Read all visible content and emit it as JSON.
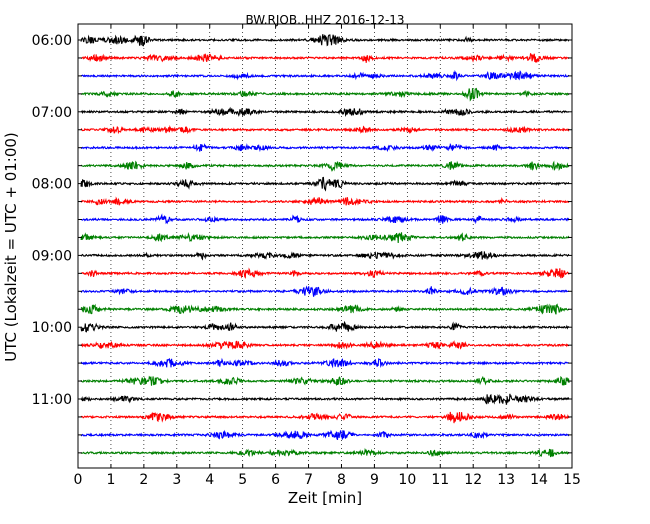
{
  "chart_data": {
    "type": "line",
    "subtype": "dayplot",
    "title": "BW.RJOB..HHZ 2016-12-13",
    "xlabel": "Zeit  [min]",
    "ylabel": "UTC (Lokalzeit = UTC + 01:00)",
    "xlim": [
      0,
      15
    ],
    "x_ticks": [
      "0",
      "1",
      "2",
      "3",
      "4",
      "5",
      "6",
      "7",
      "8",
      "9",
      "10",
      "11",
      "12",
      "13",
      "14",
      "15"
    ],
    "y_tick_labels": [
      "06:00",
      "07:00",
      "08:00",
      "09:00",
      "10:00",
      "11:00"
    ],
    "grid": "vertical dotted at each minute",
    "legend": "none",
    "colors": [
      "#000000",
      "#ff0000",
      "#0000ff",
      "#008000"
    ],
    "traces": [
      {
        "start": "06:00",
        "color": "#000000"
      },
      {
        "start": "06:15",
        "color": "#ff0000"
      },
      {
        "start": "06:30",
        "color": "#0000ff"
      },
      {
        "start": "06:45",
        "color": "#008000"
      },
      {
        "start": "07:00",
        "color": "#000000"
      },
      {
        "start": "07:15",
        "color": "#ff0000"
      },
      {
        "start": "07:30",
        "color": "#0000ff"
      },
      {
        "start": "07:45",
        "color": "#008000"
      },
      {
        "start": "08:00",
        "color": "#000000"
      },
      {
        "start": "08:15",
        "color": "#ff0000"
      },
      {
        "start": "08:30",
        "color": "#0000ff"
      },
      {
        "start": "08:45",
        "color": "#008000"
      },
      {
        "start": "09:00",
        "color": "#000000"
      },
      {
        "start": "09:15",
        "color": "#ff0000"
      },
      {
        "start": "09:30",
        "color": "#0000ff"
      },
      {
        "start": "09:45",
        "color": "#008000"
      },
      {
        "start": "10:00",
        "color": "#000000"
      },
      {
        "start": "10:15",
        "color": "#ff0000"
      },
      {
        "start": "10:30",
        "color": "#0000ff"
      },
      {
        "start": "10:45",
        "color": "#008000"
      },
      {
        "start": "11:00",
        "color": "#000000"
      },
      {
        "start": "11:15",
        "color": "#ff0000"
      },
      {
        "start": "11:30",
        "color": "#0000ff"
      },
      {
        "start": "11:45",
        "color": "#008000"
      }
    ]
  }
}
